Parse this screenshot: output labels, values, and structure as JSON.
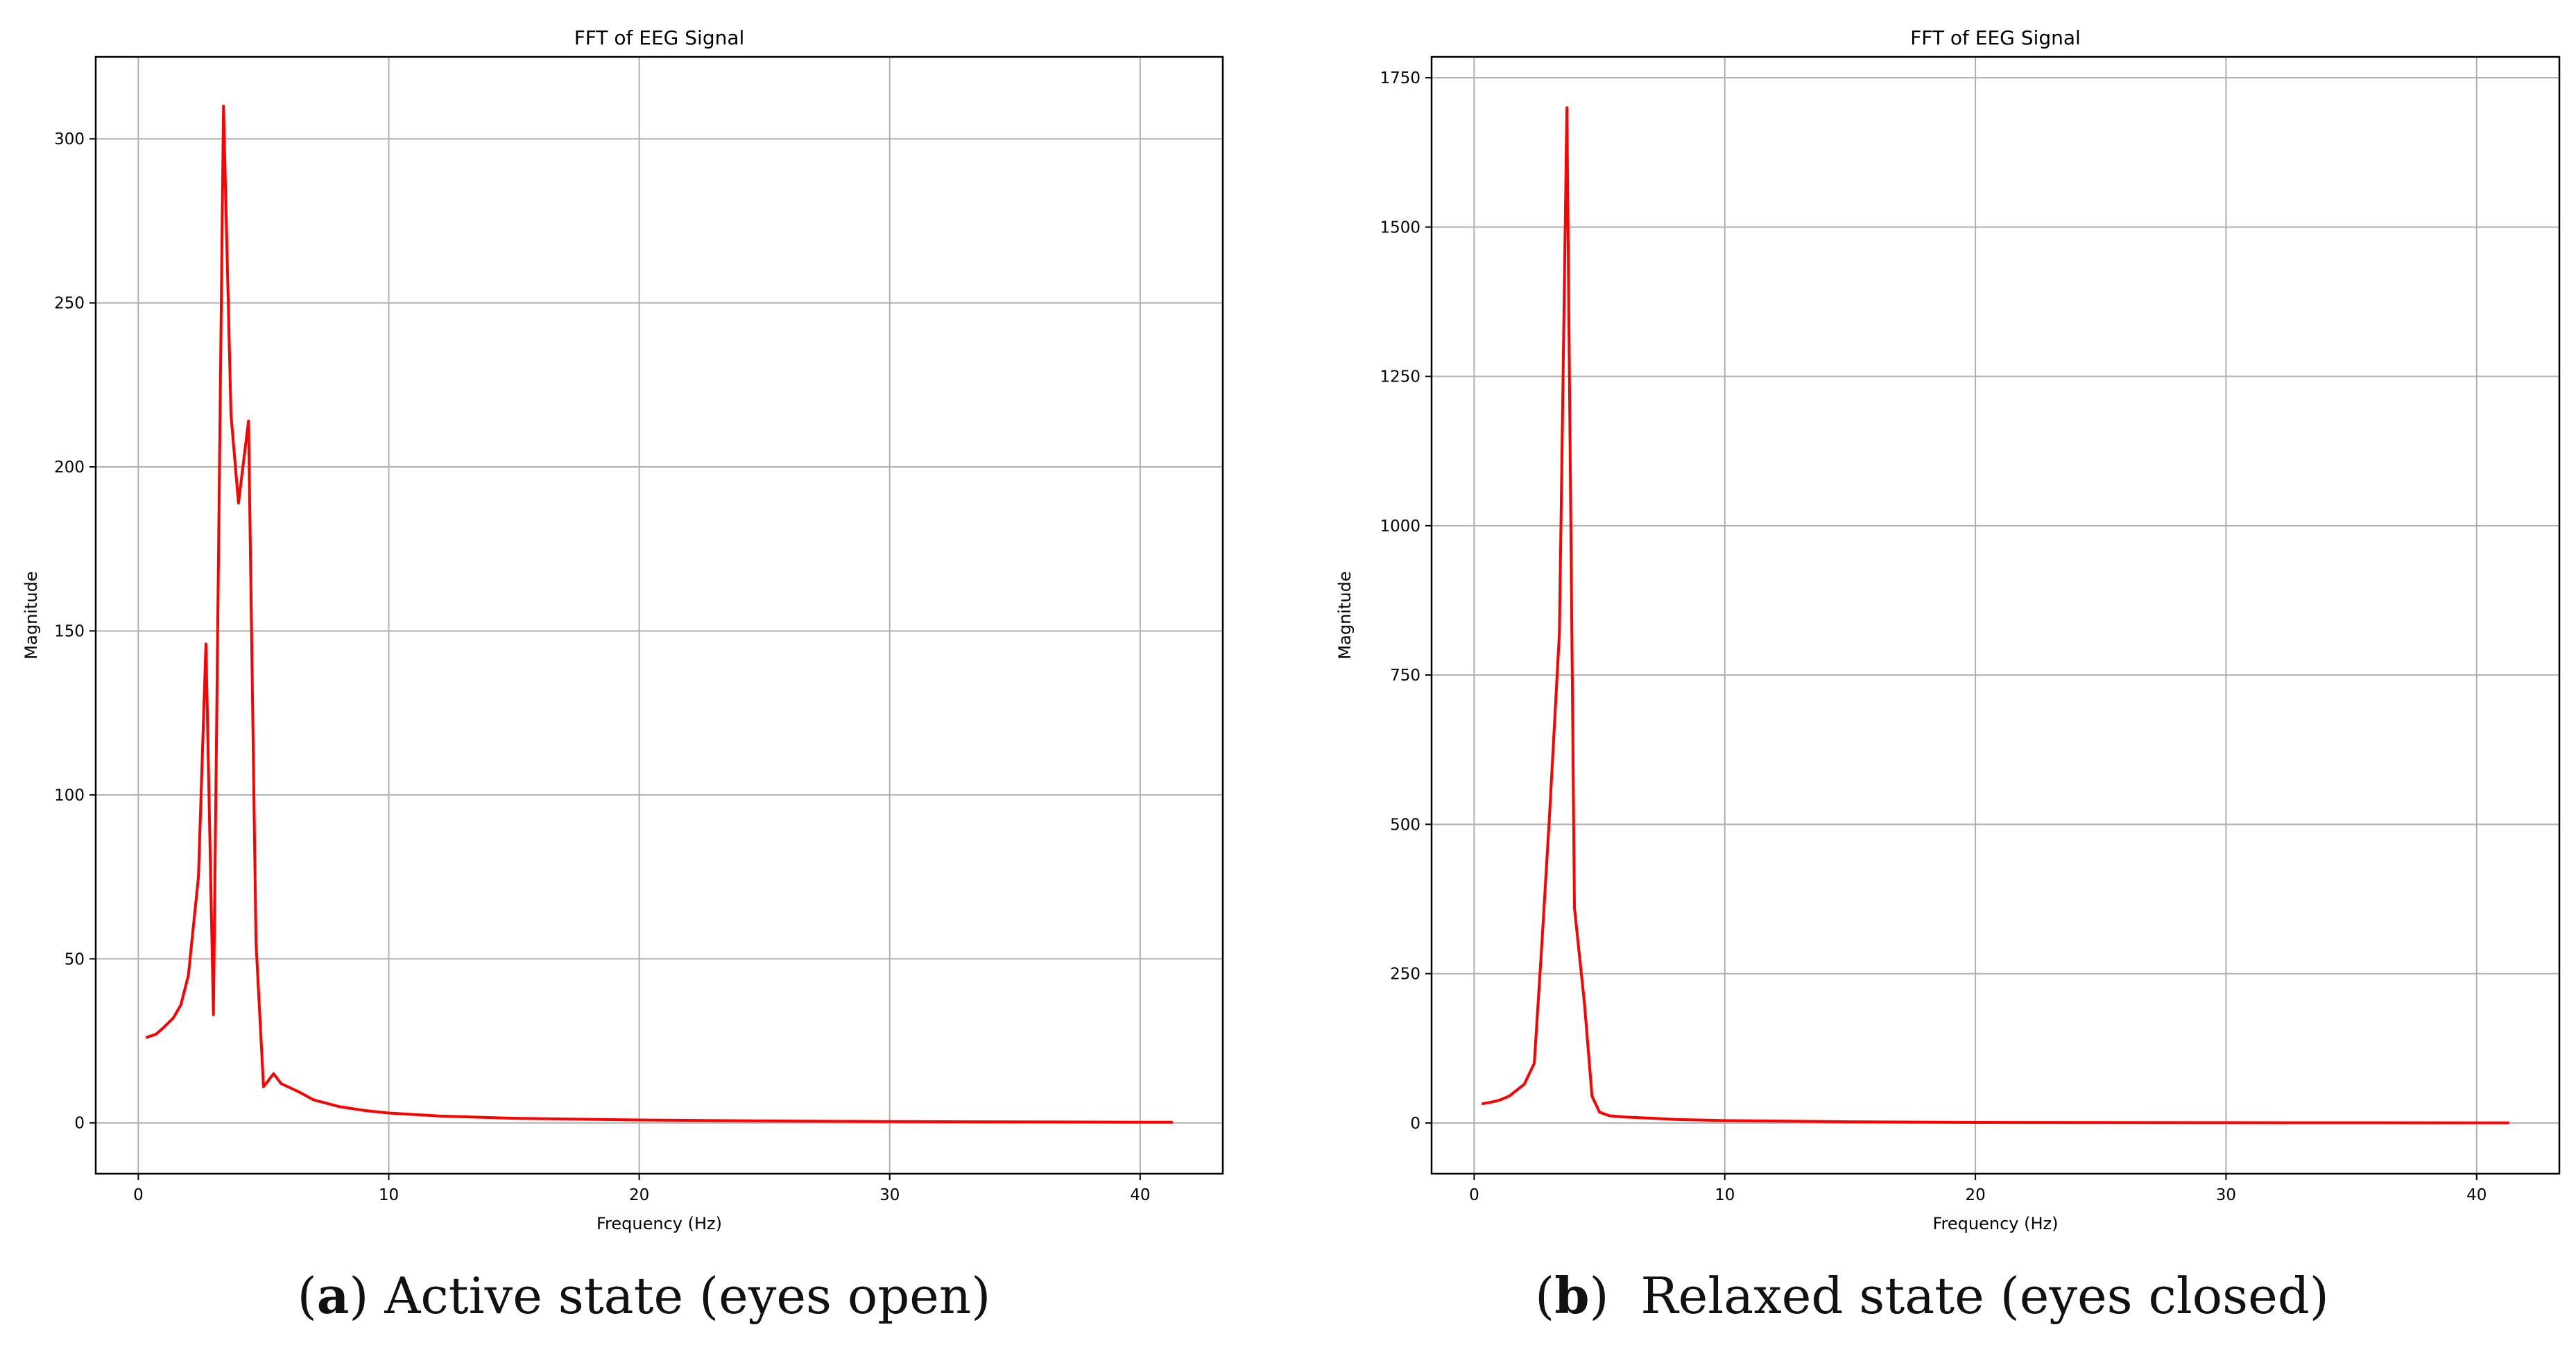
{
  "chart_data": [
    {
      "type": "line",
      "title": "FFT of EEG Signal",
      "xlabel": "Frequency (Hz)",
      "ylabel": "Magnitude",
      "xlim": [
        -1.7,
        43.3
      ],
      "ylim": [
        -15.5,
        325
      ],
      "xticks": [
        0,
        10,
        20,
        30,
        40
      ],
      "yticks": [
        0,
        50,
        100,
        150,
        200,
        250,
        300
      ],
      "grid": true,
      "line_color": "#ff0000",
      "caption_letter": "a",
      "caption_text": "Active state (eyes open)",
      "series": [
        {
          "x": [
            0.3,
            0.7,
            1.0,
            1.4,
            1.7,
            2.0,
            2.4,
            2.7,
            3.0,
            3.4,
            3.7,
            4.0,
            4.4,
            4.7,
            5.0,
            5.4,
            5.7,
            6.4,
            7.0,
            8.0,
            9.0,
            10.0,
            12.0,
            15.0,
            20.0,
            25.0,
            30.0,
            35.0,
            41.3
          ],
          "y": [
            26,
            27,
            29,
            32,
            36,
            45,
            75,
            146,
            33,
            310,
            216,
            189,
            214,
            55,
            11,
            15,
            12,
            9.5,
            7,
            5,
            3.8,
            3,
            2.1,
            1.4,
            0.9,
            0.6,
            0.4,
            0.3,
            0.2
          ]
        }
      ]
    },
    {
      "type": "line",
      "title": "FFT of EEG Signal",
      "xlabel": "Frequency (Hz)",
      "ylabel": "Magnitude",
      "xlim": [
        -1.7,
        43.3
      ],
      "ylim": [
        -85,
        1785
      ],
      "xticks": [
        0,
        10,
        20,
        30,
        40
      ],
      "yticks": [
        0,
        250,
        500,
        750,
        1000,
        1250,
        1500,
        1750
      ],
      "grid": true,
      "line_color": "#ff0000",
      "caption_letter": "b",
      "caption_text": "Relaxed state (eyes closed)",
      "series": [
        {
          "x": [
            0.3,
            0.7,
            1.0,
            1.4,
            1.7,
            2.0,
            2.4,
            2.7,
            3.0,
            3.4,
            3.7,
            4.0,
            4.4,
            4.7,
            5.0,
            5.4,
            6.0,
            7.0,
            8.0,
            10.0,
            15.0,
            20.0,
            30.0,
            41.3
          ],
          "y": [
            32,
            35,
            38,
            45,
            55,
            65,
            100,
            300,
            510,
            820,
            1700,
            360,
            200,
            45,
            18,
            12,
            10,
            8,
            6,
            4,
            2,
            1,
            0.5,
            0.3
          ]
        }
      ]
    }
  ]
}
